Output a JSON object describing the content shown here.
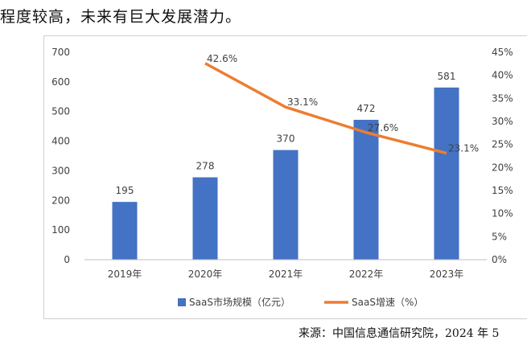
{
  "intro_text": "程度较高，未来有巨大发展潜力。",
  "source_text": "来源：中国信息通信研究院，2024 年 5",
  "chart_data": {
    "type": "bar",
    "categories": [
      "2019年",
      "2020年",
      "2021年",
      "2022年",
      "2023年"
    ],
    "series": [
      {
        "name": "SaaS市场规模（亿元）",
        "type": "bar",
        "axis": "left",
        "values": [
          195,
          278,
          370,
          472,
          581
        ],
        "labels": [
          "195",
          "278",
          "370",
          "472",
          "581"
        ],
        "color": "#4472c4"
      },
      {
        "name": "SaaS增速（%）",
        "type": "line",
        "axis": "right",
        "values": [
          null,
          42.6,
          33.1,
          27.6,
          23.1
        ],
        "labels": [
          "",
          "42.6%",
          "33.1%",
          "27.6%",
          "23.1%"
        ],
        "color": "#ed7d31"
      }
    ],
    "ylim_left": [
      0,
      700
    ],
    "yticks_left": [
      "0",
      "100",
      "200",
      "300",
      "400",
      "500",
      "600",
      "700"
    ],
    "ylim_right": [
      0,
      45
    ],
    "yticks_right": [
      "0%",
      "5%",
      "10%",
      "15%",
      "20%",
      "25%",
      "30%",
      "35%",
      "40%",
      "45%"
    ],
    "grid": false,
    "legend_position": "bottom"
  }
}
